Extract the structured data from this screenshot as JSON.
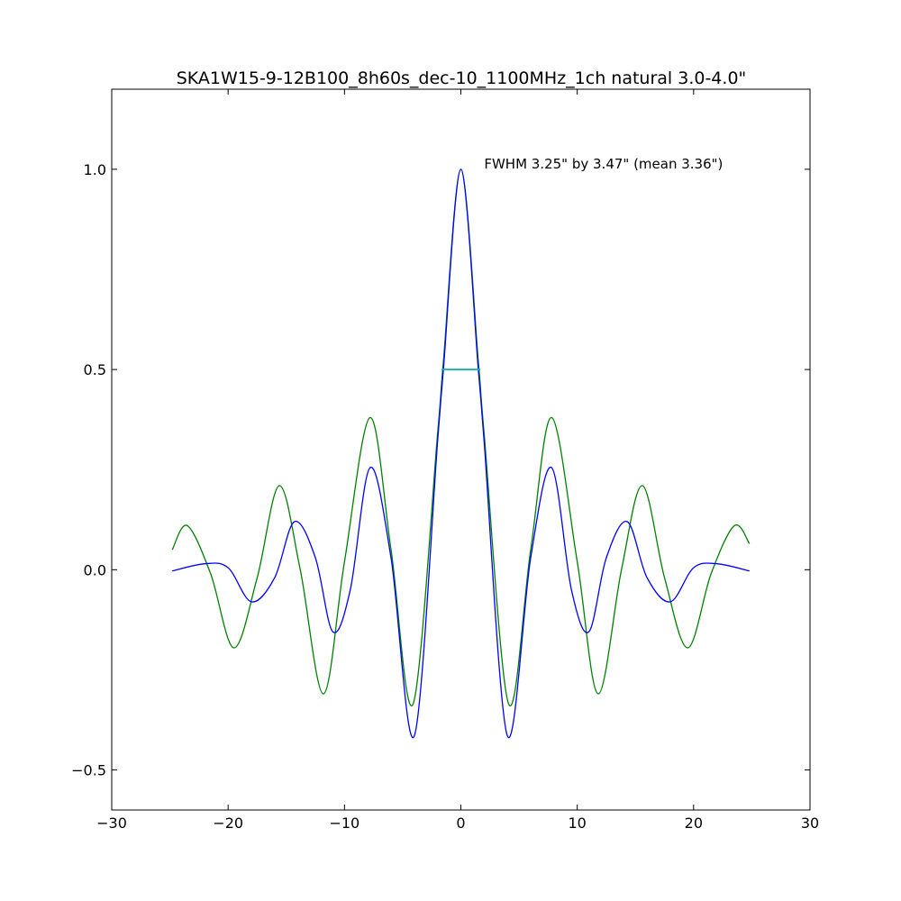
{
  "chart_data": {
    "type": "line",
    "title": "SKA1W15-9-12B100_8h60s_dec-10_1100MHz_1ch natural  3.0-4.0\"",
    "xlabel": "",
    "ylabel": "",
    "xlim": [
      -30,
      30
    ],
    "ylim": [
      -0.6,
      1.2
    ],
    "xticks": [
      -30,
      -20,
      -10,
      0,
      10,
      20,
      30
    ],
    "xtick_labels": [
      "−30",
      "−20",
      "−10",
      "0",
      "10",
      "20",
      "30"
    ],
    "yticks": [
      -0.5,
      0.0,
      0.5,
      1.0
    ],
    "ytick_labels": [
      "−0.5",
      "0.0",
      "0.5",
      "1.0"
    ],
    "grid": false,
    "annotation": {
      "text": "FWHM 3.25\" by 3.47\" (mean 3.36\")",
      "x": 2.0,
      "y": 1.0
    },
    "series": [
      {
        "name": "profile-blue",
        "color": "#0000ff",
        "x": [
          -24.8,
          -22,
          -20,
          -18,
          -16,
          -14.3,
          -12.5,
          -11,
          -9.5,
          -7.8,
          -6,
          -4,
          -2,
          -1.5,
          0,
          1.5,
          2,
          4,
          6,
          7.8,
          9.5,
          11,
          12.5,
          14.3,
          16,
          18,
          20,
          22,
          24.8
        ],
        "y": [
          -0.003,
          0.015,
          0.005,
          -0.08,
          -0.02,
          0.12,
          0.03,
          -0.155,
          -0.05,
          0.255,
          0.03,
          -0.415,
          0.32,
          0.5,
          1.0,
          0.5,
          0.32,
          -0.415,
          0.03,
          0.255,
          -0.05,
          -0.155,
          0.03,
          0.12,
          -0.02,
          -0.08,
          0.005,
          0.015,
          -0.003
        ]
      },
      {
        "name": "profile-green",
        "color": "#008000",
        "x": [
          -24.8,
          -23.5,
          -21.5,
          -19.5,
          -17.5,
          -15.6,
          -13.8,
          -11.8,
          -10,
          -7.8,
          -6,
          -4.1,
          -2,
          -1.5,
          0,
          1.5,
          2,
          4.1,
          6,
          7.8,
          10,
          11.8,
          13.8,
          15.6,
          17.5,
          19.5,
          21.5,
          23.5,
          24.8
        ],
        "y": [
          0.05,
          0.11,
          -0.01,
          -0.195,
          -0.02,
          0.21,
          0.0,
          -0.31,
          0.02,
          0.38,
          0.05,
          -0.335,
          0.34,
          0.52,
          1.0,
          0.52,
          0.34,
          -0.335,
          0.05,
          0.38,
          0.02,
          -0.31,
          0.0,
          0.21,
          -0.02,
          -0.195,
          -0.01,
          0.11,
          0.065
        ]
      },
      {
        "name": "fwhm-line",
        "color": "#20b2aa",
        "x": [
          -1.68,
          1.68
        ],
        "y": [
          0.5,
          0.5
        ]
      }
    ]
  }
}
